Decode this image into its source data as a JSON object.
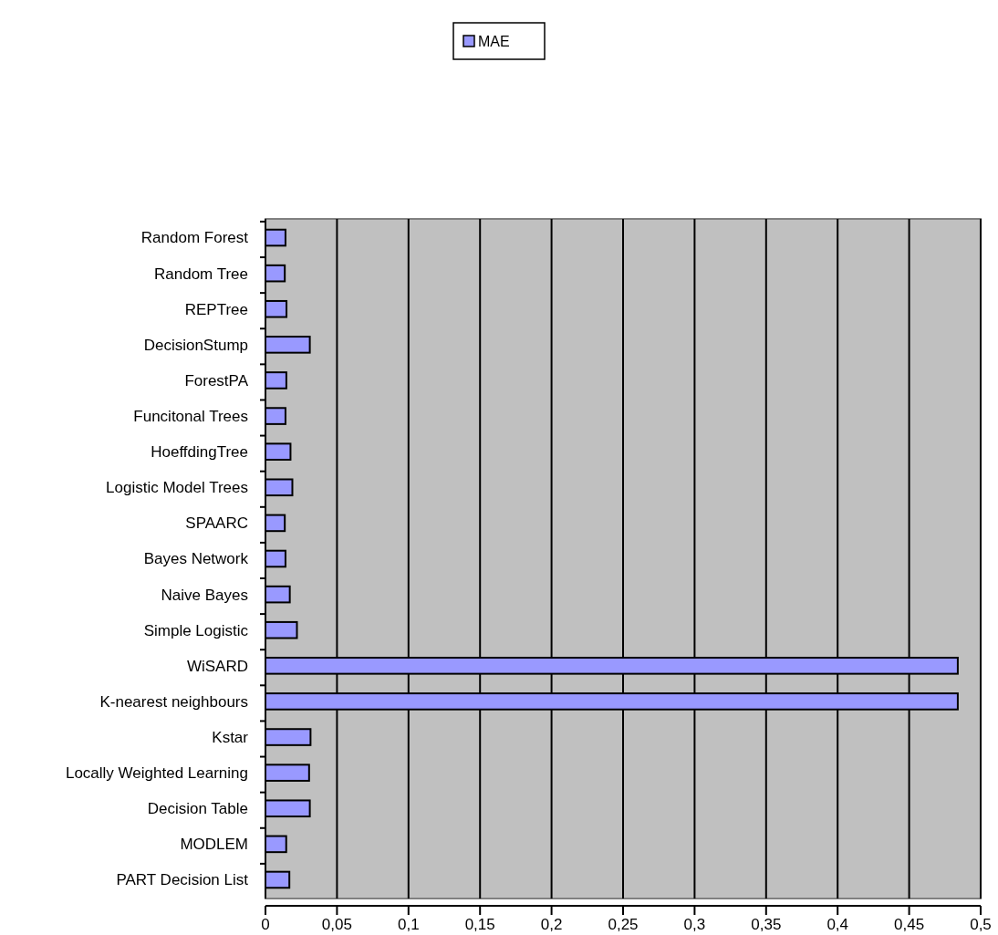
{
  "chart_data": {
    "type": "bar",
    "orientation": "horizontal",
    "categories": [
      "Random Forest",
      "Random Tree",
      "REPTree",
      "DecisionStump",
      "ForestPA",
      "Funcitonal Trees",
      "HoeffdingTree",
      "Logistic Model Trees",
      "SPAARC",
      "Bayes Network",
      "Naive Bayes",
      "Simple Logistic",
      "WiSARD",
      "K-nearest neighbours",
      "Kstar",
      "Locally Weighted Learning",
      "Decision Table",
      "MODLEM",
      "PART Decision List"
    ],
    "series": [
      {
        "name": "MAE",
        "color": "#9999ff",
        "values": [
          0.014,
          0.0135,
          0.0147,
          0.031,
          0.0146,
          0.014,
          0.0175,
          0.0188,
          0.0135,
          0.014,
          0.017,
          0.022,
          0.484,
          0.484,
          0.0315,
          0.0305,
          0.031,
          0.0145,
          0.0167
        ]
      }
    ],
    "xlim": [
      0,
      0.5
    ],
    "xticks": [
      0,
      {
        "value": 0.05,
        "label": "0,05"
      },
      {
        "value": 0.1,
        "label": "0,1"
      },
      {
        "value": 0.15,
        "label": "0,15"
      },
      {
        "value": 0.2,
        "label": "0,2"
      },
      {
        "value": 0.25,
        "label": "0,25"
      },
      {
        "value": 0.3,
        "label": "0,3"
      },
      {
        "value": 0.35,
        "label": "0,35"
      },
      {
        "value": 0.4,
        "label": "0,4"
      },
      {
        "value": 0.45,
        "label": "0,45"
      },
      {
        "value": 0.5,
        "label": "0,5"
      }
    ],
    "grid": "x",
    "legend": "top"
  }
}
